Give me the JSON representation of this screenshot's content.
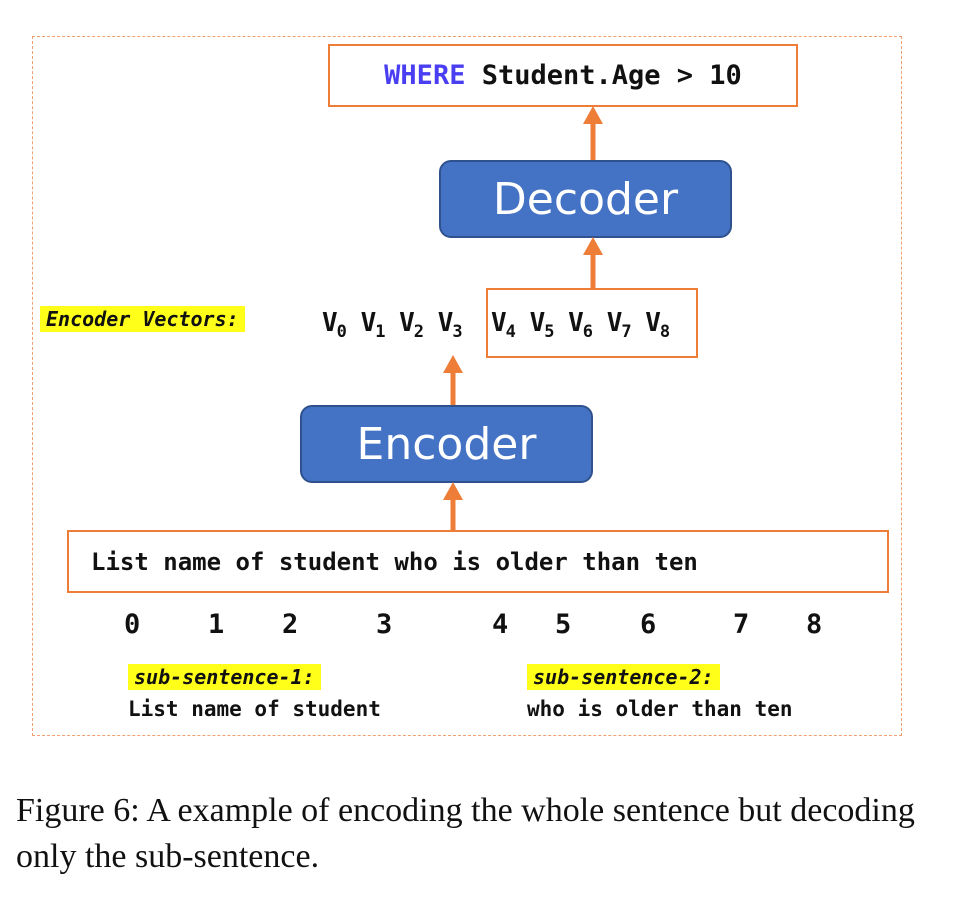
{
  "output_query": {
    "keyword": "WHERE",
    "condition": "Student.Age > 10"
  },
  "decoder_label": "Decoder",
  "encoder_label": "Encoder",
  "encoder_vectors": {
    "label": "Encoder Vectors:",
    "vectors": [
      {
        "base": "V",
        "sub": "0"
      },
      {
        "base": "V",
        "sub": "1"
      },
      {
        "base": "V",
        "sub": "2"
      },
      {
        "base": "V",
        "sub": "3"
      },
      {
        "base": "V",
        "sub": "4"
      },
      {
        "base": "V",
        "sub": "5"
      },
      {
        "base": "V",
        "sub": "6"
      },
      {
        "base": "V",
        "sub": "7"
      },
      {
        "base": "V",
        "sub": "8"
      }
    ]
  },
  "input_sentence": "List name of student who is older than ten",
  "token_indices": [
    "0",
    "1",
    "2",
    "3",
    "4",
    "5",
    "6",
    "7",
    "8"
  ],
  "sub_sentence_1": {
    "label": "sub-sentence-1:",
    "text": "List name of student"
  },
  "sub_sentence_2": {
    "label": "sub-sentence-2:",
    "text": "who is older than ten"
  },
  "caption": "Figure 6: A example of encoding the whole sentence but decoding only the sub-sentence.",
  "colors": {
    "accent_orange": "#ee7d38",
    "block_blue": "#4472c4",
    "highlight": "#ffff1a",
    "keyword": "#4a3ef2"
  }
}
